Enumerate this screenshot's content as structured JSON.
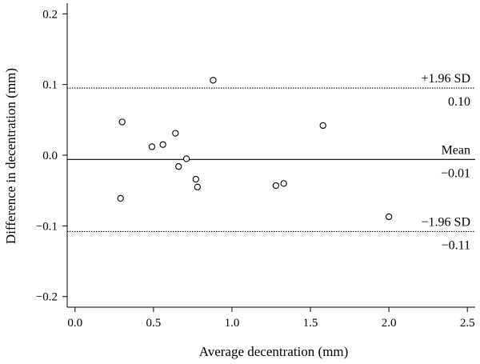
{
  "chart_data": {
    "type": "scatter",
    "xlabel": "Average decentration (mm)",
    "ylabel": "Difference in decentration (mm)",
    "xlim": [
      -0.05,
      2.55
    ],
    "ylim": [
      -0.215,
      0.215
    ],
    "x_ticks": [
      0.0,
      0.5,
      1.0,
      1.5,
      2.0,
      2.5
    ],
    "x_tick_labels": [
      "0.0",
      "0.5",
      "1.0",
      "1.5",
      "2.0",
      "2.5"
    ],
    "y_ticks": [
      0.2,
      0.1,
      0.0,
      -0.1,
      -0.2
    ],
    "y_tick_labels": [
      "0.2",
      "0.1",
      "0.0",
      "−0.1",
      "−0.2"
    ],
    "grid": false,
    "points": [
      {
        "x": 0.29,
        "y": -0.061
      },
      {
        "x": 0.3,
        "y": 0.047
      },
      {
        "x": 0.49,
        "y": 0.012
      },
      {
        "x": 0.56,
        "y": 0.015
      },
      {
        "x": 0.64,
        "y": 0.031
      },
      {
        "x": 0.66,
        "y": -0.016
      },
      {
        "x": 0.71,
        "y": -0.005
      },
      {
        "x": 0.77,
        "y": -0.034
      },
      {
        "x": 0.78,
        "y": -0.045
      },
      {
        "x": 0.88,
        "y": 0.106
      },
      {
        "x": 1.28,
        "y": -0.043
      },
      {
        "x": 1.33,
        "y": -0.04
      },
      {
        "x": 1.58,
        "y": 0.042
      },
      {
        "x": 2.0,
        "y": -0.087
      }
    ],
    "reference_lines": [
      {
        "key": "upper",
        "y": 0.095,
        "style": "dotted",
        "label": "+1.96 SD",
        "value_label": "0.10"
      },
      {
        "key": "mean",
        "y": -0.006,
        "style": "solid",
        "label": "Mean",
        "value_label": "−0.01"
      },
      {
        "key": "lower",
        "y": -0.108,
        "style": "dotted",
        "label": "−1.96 SD",
        "value_label": "−0.11"
      }
    ]
  }
}
